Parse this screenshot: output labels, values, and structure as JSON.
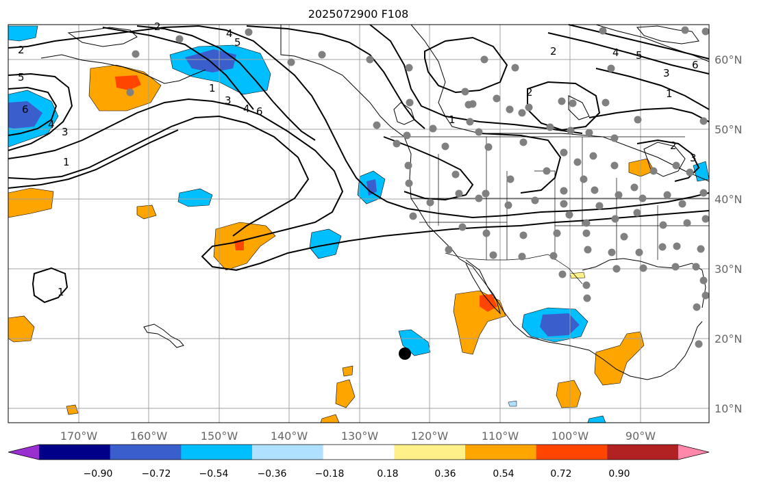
{
  "title": "2025072900 F108",
  "lon_labels": [
    "170°W",
    "160°W",
    "150°W",
    "140°W",
    "130°W",
    "120°W",
    "110°W",
    "100°W",
    "90°W"
  ],
  "lat_labels": [
    "60°N",
    "50°N",
    "40°N",
    "30°N",
    "20°N",
    "10°N"
  ],
  "colorbar": {
    "ticks": [
      "−0.90",
      "−0.72",
      "−0.54",
      "−0.36",
      "−0.18",
      "0.18",
      "0.36",
      "0.54",
      "0.72",
      "0.90"
    ],
    "colors": [
      "#9b30d0",
      "#000088",
      "#3a5fcd",
      "#00bfff",
      "#b0e0ff",
      "#ffffff",
      "#fff08a",
      "#ffa500",
      "#ff4500",
      "#b22222",
      "#ff88aa"
    ]
  },
  "contour_labels": [
    "2",
    "5",
    "6",
    "4",
    "3",
    "1",
    "2",
    "5",
    "4",
    "3",
    "4",
    "6",
    "1",
    "2",
    "1",
    "2",
    "4",
    "5",
    "3",
    "6",
    "1",
    "2",
    "3",
    "1"
  ],
  "marker": {
    "type": "storm-center",
    "color": "#000000"
  },
  "station_color": "#808080",
  "fill_colors": {
    "orange": "#ffa500",
    "red": "#ff4500",
    "lightblue": "#00bfff",
    "blue": "#3a5fcd"
  }
}
